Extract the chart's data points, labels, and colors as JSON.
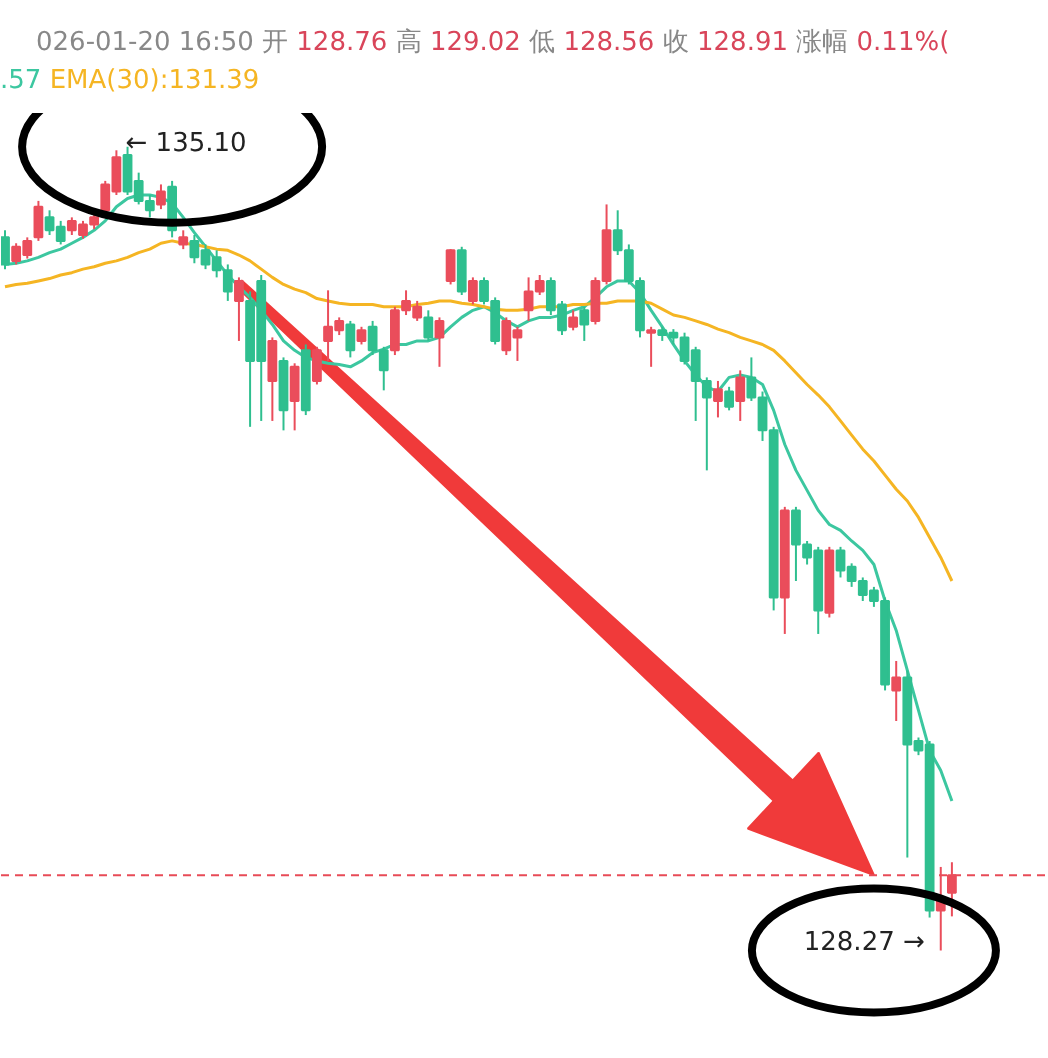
{
  "chart_data": {
    "type": "candlestick",
    "tick_labels": false,
    "categories": [
      null,
      null,
      null,
      null,
      null,
      null,
      null,
      null,
      null,
      null,
      null,
      null,
      null,
      null,
      null,
      null,
      null,
      null,
      null,
      null,
      null,
      null,
      null,
      null,
      null,
      null,
      null,
      null,
      null,
      null,
      null,
      null,
      null,
      null,
      null,
      null,
      null,
      null,
      null,
      null,
      null,
      null,
      null,
      null,
      null,
      null,
      null,
      null,
      null,
      null,
      null,
      null,
      null,
      null,
      null,
      null,
      null,
      null,
      null,
      null,
      null,
      null,
      null,
      null,
      null,
      null,
      null,
      null,
      null,
      null,
      null,
      null,
      null,
      null,
      null,
      null,
      null,
      null,
      null,
      null,
      null,
      null,
      null,
      null,
      null,
      null
    ],
    "ohlc": [
      [
        134.33,
        134.39,
        134.06,
        134.1
      ],
      [
        134.13,
        134.28,
        134.1,
        134.25
      ],
      [
        134.18,
        134.33,
        134.15,
        134.3
      ],
      [
        134.33,
        134.64,
        134.3,
        134.59
      ],
      [
        134.5,
        134.56,
        134.35,
        134.39
      ],
      [
        134.42,
        134.47,
        134.27,
        134.3
      ],
      [
        134.39,
        134.5,
        134.35,
        134.47
      ],
      [
        134.35,
        134.47,
        134.32,
        134.44
      ],
      [
        134.44,
        134.54,
        134.4,
        134.5
      ],
      [
        134.56,
        134.81,
        134.52,
        134.78
      ],
      [
        134.72,
        135.07,
        134.69,
        135.01
      ],
      [
        135.03,
        135.1,
        134.69,
        134.72
      ],
      [
        134.81,
        134.88,
        134.61,
        134.64
      ],
      [
        134.64,
        134.69,
        134.5,
        134.56
      ],
      [
        134.61,
        134.78,
        134.57,
        134.72
      ],
      [
        134.76,
        134.81,
        134.33,
        134.39
      ],
      [
        134.27,
        134.39,
        134.23,
        134.33
      ],
      [
        134.3,
        134.35,
        134.11,
        134.16
      ],
      [
        134.22,
        134.27,
        134.06,
        134.1
      ],
      [
        134.16,
        134.22,
        133.99,
        134.05
      ],
      [
        134.05,
        134.1,
        133.79,
        133.87
      ],
      [
        133.79,
        133.99,
        133.45,
        133.96
      ],
      [
        133.79,
        133.87,
        132.72,
        133.28
      ],
      [
        133.96,
        134.01,
        132.77,
        133.28
      ],
      [
        133.11,
        133.48,
        132.77,
        133.45
      ],
      [
        133.28,
        133.31,
        132.69,
        132.86
      ],
      [
        132.94,
        133.26,
        132.69,
        133.23
      ],
      [
        133.37,
        133.42,
        132.82,
        132.86
      ],
      [
        133.11,
        133.4,
        133.08,
        133.37
      ],
      [
        133.45,
        133.88,
        133.28,
        133.57
      ],
      [
        133.54,
        133.65,
        133.5,
        133.62
      ],
      [
        133.59,
        133.62,
        133.31,
        133.37
      ],
      [
        133.45,
        133.57,
        133.42,
        133.54
      ],
      [
        133.57,
        133.62,
        133.33,
        133.37
      ],
      [
        133.37,
        133.4,
        133.03,
        133.2
      ],
      [
        133.37,
        133.74,
        133.33,
        133.71
      ],
      [
        133.71,
        133.88,
        133.67,
        133.79
      ],
      [
        133.65,
        133.79,
        133.62,
        133.74
      ],
      [
        133.65,
        133.71,
        133.45,
        133.48
      ],
      [
        133.48,
        133.65,
        133.23,
        133.62
      ],
      [
        133.96,
        134.23,
        133.93,
        134.22
      ],
      [
        134.22,
        134.25,
        133.84,
        133.87
      ],
      [
        133.79,
        133.99,
        133.76,
        133.96
      ],
      [
        133.96,
        133.99,
        133.76,
        133.79
      ],
      [
        133.79,
        133.82,
        133.42,
        133.45
      ],
      [
        133.37,
        133.65,
        133.33,
        133.62
      ],
      [
        133.48,
        133.57,
        133.28,
        133.54
      ],
      [
        133.71,
        133.99,
        133.62,
        133.87
      ],
      [
        133.87,
        134.01,
        133.84,
        133.96
      ],
      [
        133.96,
        133.99,
        133.67,
        133.71
      ],
      [
        133.76,
        133.79,
        133.5,
        133.54
      ],
      [
        133.57,
        133.71,
        133.54,
        133.65
      ],
      [
        133.71,
        133.74,
        133.45,
        133.59
      ],
      [
        133.62,
        133.99,
        133.59,
        133.96
      ],
      [
        133.96,
        134.61,
        133.93,
        134.39
      ],
      [
        134.39,
        134.56,
        134.18,
        134.22
      ],
      [
        134.22,
        134.27,
        133.93,
        133.96
      ],
      [
        133.96,
        133.99,
        133.48,
        133.54
      ],
      [
        133.52,
        133.57,
        133.23,
        133.54
      ],
      [
        133.54,
        133.57,
        133.45,
        133.5
      ],
      [
        133.52,
        133.55,
        133.42,
        133.48
      ],
      [
        133.48,
        133.52,
        133.25,
        133.28
      ],
      [
        133.37,
        133.4,
        132.77,
        133.11
      ],
      [
        133.11,
        133.14,
        132.35,
        132.97
      ],
      [
        132.94,
        133.11,
        132.8,
        133.04
      ],
      [
        133.02,
        133.06,
        132.86,
        132.89
      ],
      [
        132.94,
        133.2,
        132.77,
        133.14
      ],
      [
        133.14,
        133.31,
        132.94,
        132.97
      ],
      [
        132.97,
        133.02,
        132.6,
        132.69
      ],
      [
        132.69,
        132.72,
        131.16,
        131.27
      ],
      [
        131.27,
        132.04,
        130.96,
        132.01
      ],
      [
        132.01,
        132.04,
        131.41,
        131.72
      ],
      [
        131.72,
        131.75,
        131.55,
        131.61
      ],
      [
        131.67,
        131.7,
        130.96,
        131.16
      ],
      [
        131.14,
        131.7,
        131.1,
        131.67
      ],
      [
        131.67,
        131.7,
        131.44,
        131.5
      ],
      [
        131.53,
        131.56,
        131.36,
        131.41
      ],
      [
        131.41,
        131.44,
        131.24,
        131.29
      ],
      [
        131.33,
        131.36,
        131.19,
        131.24
      ],
      [
        131.24,
        131.27,
        130.48,
        130.53
      ],
      [
        130.48,
        130.73,
        130.22,
        130.59
      ],
      [
        130.59,
        130.65,
        129.06,
        130.02
      ],
      [
        130.05,
        130.08,
        129.93,
        129.97
      ],
      [
        130.02,
        130.05,
        128.55,
        128.61
      ],
      [
        128.61,
        128.98,
        128.27,
        128.69
      ],
      [
        128.76,
        129.02,
        128.56,
        128.91
      ]
    ],
    "colors": [
      "#2fbf8f",
      "#ea4d5b",
      "#ea4d5b",
      "#ea4d5b",
      "#2fbf8f",
      "#2fbf8f",
      "#ea4d5b",
      "#ea4d5b",
      "#ea4d5b",
      "#ea4d5b",
      "#ea4d5b",
      "#2fbf8f",
      "#2fbf8f",
      "#2fbf8f",
      "#ea4d5b",
      "#2fbf8f",
      "#ea4d5b",
      "#2fbf8f",
      "#2fbf8f",
      "#2fbf8f",
      "#2fbf8f",
      "#ea4d5b",
      "#2fbf8f",
      "#2fbf8f",
      "#ea4d5b",
      "#2fbf8f",
      "#ea4d5b",
      "#2fbf8f",
      "#ea4d5b",
      "#ea4d5b",
      "#ea4d5b",
      "#2fbf8f",
      "#ea4d5b",
      "#2fbf8f",
      "#2fbf8f",
      "#ea4d5b",
      "#ea4d5b",
      "#ea4d5b",
      "#2fbf8f",
      "#ea4d5b",
      "#ea4d5b",
      "#2fbf8f",
      "#ea4d5b",
      "#2fbf8f",
      "#2fbf8f",
      "#ea4d5b",
      "#ea4d5b",
      "#ea4d5b",
      "#ea4d5b",
      "#2fbf8f",
      "#2fbf8f",
      "#ea4d5b",
      "#2fbf8f",
      "#ea4d5b",
      "#ea4d5b",
      "#2fbf8f",
      "#2fbf8f",
      "#2fbf8f",
      "#ea4d5b",
      "#2fbf8f",
      "#2fbf8f",
      "#2fbf8f",
      "#2fbf8f",
      "#2fbf8f",
      "#ea4d5b",
      "#2fbf8f",
      "#ea4d5b",
      "#2fbf8f",
      "#2fbf8f",
      "#2fbf8f",
      "#ea4d5b",
      "#2fbf8f",
      "#2fbf8f",
      "#2fbf8f",
      "#ea4d5b",
      "#2fbf8f",
      "#2fbf8f",
      "#2fbf8f",
      "#2fbf8f",
      "#2fbf8f",
      "#ea4d5b",
      "#2fbf8f",
      "#2fbf8f",
      "#2fbf8f",
      "#ea4d5b",
      "#ea4d5b"
    ],
    "series": [
      {
        "type": "line",
        "color": "#3cc7a0",
        "values": [
          134.1,
          134.11,
          134.13,
          134.16,
          134.2,
          134.23,
          134.28,
          134.33,
          134.39,
          134.47,
          134.59,
          134.66,
          134.69,
          134.69,
          134.67,
          134.62,
          134.5,
          134.37,
          134.25,
          134.13,
          134.01,
          133.91,
          133.82,
          133.71,
          133.59,
          133.45,
          133.37,
          133.31,
          133.28,
          133.26,
          133.25,
          133.23,
          133.28,
          133.35,
          133.38,
          133.42,
          133.42,
          133.45,
          133.45,
          133.48,
          133.57,
          133.65,
          133.71,
          133.74,
          133.69,
          133.62,
          133.57,
          133.62,
          133.65,
          133.65,
          133.67,
          133.71,
          133.74,
          133.82,
          133.91,
          133.96,
          133.96,
          133.86,
          133.71,
          133.57,
          133.42,
          133.28,
          133.16,
          133.06,
          133.02,
          133.14,
          133.16,
          133.14,
          133.08,
          132.86,
          132.57,
          132.35,
          132.18,
          132.01,
          131.89,
          131.84,
          131.75,
          131.67,
          131.55,
          131.24,
          130.99,
          130.65,
          130.31,
          129.97,
          129.8,
          129.54
        ]
      },
      {
        "type": "line",
        "color": "#f5b523",
        "values": [
          133.91,
          133.93,
          133.94,
          133.96,
          133.98,
          134.01,
          134.03,
          134.06,
          134.08,
          134.11,
          134.13,
          134.16,
          134.2,
          134.23,
          134.28,
          134.3,
          134.28,
          134.27,
          134.25,
          134.23,
          134.22,
          134.18,
          134.13,
          134.06,
          133.99,
          133.93,
          133.89,
          133.86,
          133.81,
          133.79,
          133.77,
          133.76,
          133.76,
          133.76,
          133.74,
          133.74,
          133.74,
          133.76,
          133.77,
          133.79,
          133.79,
          133.77,
          133.76,
          133.74,
          133.72,
          133.71,
          133.71,
          133.72,
          133.74,
          133.74,
          133.74,
          133.76,
          133.76,
          133.77,
          133.77,
          133.79,
          133.79,
          133.79,
          133.77,
          133.72,
          133.67,
          133.65,
          133.62,
          133.59,
          133.55,
          133.52,
          133.48,
          133.45,
          133.42,
          133.37,
          133.28,
          133.18,
          133.08,
          132.99,
          132.89,
          132.77,
          132.65,
          132.53,
          132.43,
          132.31,
          132.19,
          132.09,
          131.95,
          131.78,
          131.61,
          131.41
        ]
      }
    ],
    "ref_lines": [
      {
        "axis": "y",
        "value": 128.91,
        "color": "#e84b57",
        "line_style": "dashed"
      }
    ],
    "annotations": [
      "026-01-20 16:50",
      "开",
      "128.76",
      "高",
      "129.02",
      "低",
      "128.56",
      "收",
      "128.91",
      "涨幅",
      "0.11%(",
      ".57",
      "EMA(30):131.39",
      "← 135.10",
      "128.27 →"
    ]
  }
}
